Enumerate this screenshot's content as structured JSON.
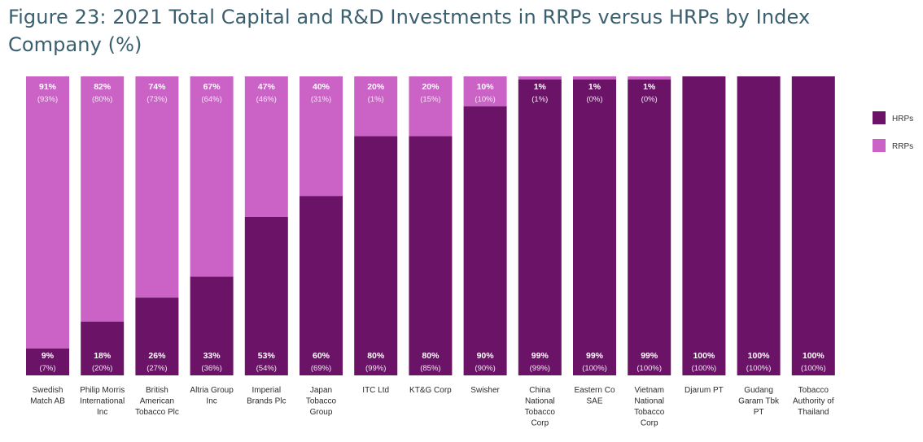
{
  "title": "Figure 23: 2021 Total Capital and R&D Investments in RRPs versus HRPs by Index Company (%)",
  "colors": {
    "hrps": "#6b1467",
    "rrps": "#cb63c6"
  },
  "chart_data": {
    "type": "bar",
    "stacked": true,
    "percent": true,
    "ylim": [
      0,
      100
    ],
    "grid": false,
    "legend_position": "right",
    "categories": [
      [
        "Swedish",
        "Match AB"
      ],
      [
        "Philip Morris",
        "International",
        "Inc"
      ],
      [
        "British",
        "American",
        "Tobacco Plc"
      ],
      [
        "Altria Group",
        "Inc"
      ],
      [
        "Imperial",
        "Brands Plc"
      ],
      [
        "Japan",
        "Tobacco",
        "Group"
      ],
      [
        "ITC Ltd"
      ],
      [
        "KT&G Corp"
      ],
      [
        "Swisher"
      ],
      [
        "China",
        "National",
        "Tobacco",
        "Corp"
      ],
      [
        "Eastern Co",
        "SAE"
      ],
      [
        "Vietnam",
        "National",
        "Tobacco",
        "Corp"
      ],
      [
        "Djarum PT"
      ],
      [
        "Gudang",
        "Garam Tbk",
        "PT"
      ],
      [
        "Tobacco",
        "Authority of",
        "Thailand"
      ]
    ],
    "series": [
      {
        "name": "HRPs",
        "values": [
          9,
          18,
          26,
          33,
          53,
          60,
          80,
          80,
          90,
          99,
          99,
          99,
          100,
          100,
          100
        ],
        "labels": [
          "9%",
          "18%",
          "26%",
          "33%",
          "53%",
          "60%",
          "80%",
          "80%",
          "90%",
          "99%",
          "99%",
          "99%",
          "100%",
          "100%",
          "100%"
        ],
        "sublabels": [
          "(7%)",
          "(20%)",
          "(27%)",
          "(36%)",
          "(54%)",
          "(69%)",
          "(99%)",
          "(85%)",
          "(90%)",
          "(99%)",
          "(100%)",
          "(100%)",
          "(100%)",
          "(100%)",
          "(100%)"
        ]
      },
      {
        "name": "RRPs",
        "values": [
          91,
          82,
          74,
          67,
          47,
          40,
          20,
          20,
          10,
          1,
          1,
          1,
          0,
          0,
          0
        ],
        "labels": [
          "91%",
          "82%",
          "74%",
          "67%",
          "47%",
          "40%",
          "20%",
          "20%",
          "10%",
          "1%",
          "1%",
          "1%",
          "",
          "",
          ""
        ],
        "sublabels": [
          "(93%)",
          "(80%)",
          "(73%)",
          "(64%)",
          "(46%)",
          "(31%)",
          "(1%)",
          "(15%)",
          "(10%)",
          "(1%)",
          "(0%)",
          "(0%)",
          "",
          "",
          ""
        ]
      }
    ],
    "legend": [
      "HRPs",
      "RRPs"
    ]
  }
}
